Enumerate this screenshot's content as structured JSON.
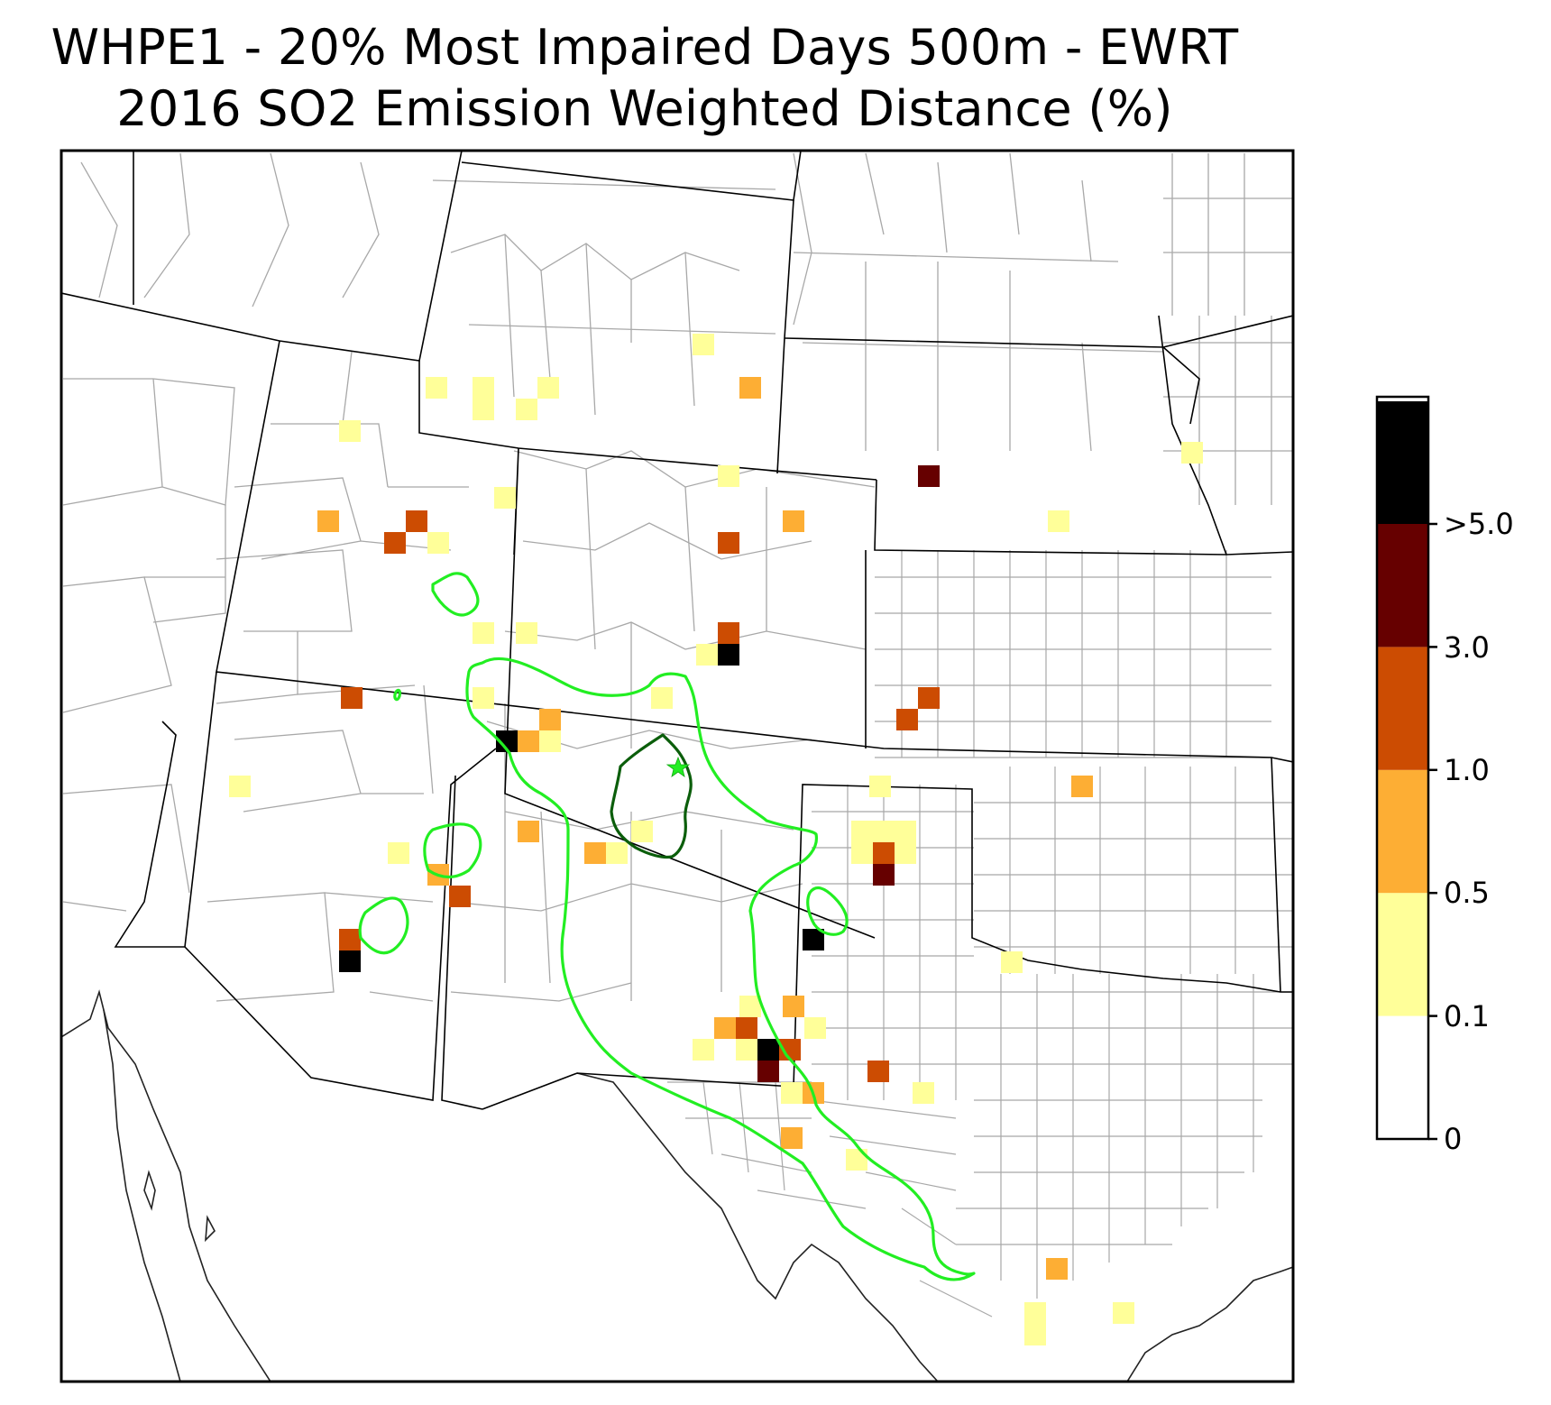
{
  "title_line1": "WHPE1 - 20% Most Impaired Days 500m - EWRT",
  "title_line2": "2016 SO2 Emission Weighted Distance (%)",
  "colorbar": {
    "ticks": [
      "0",
      "0.1",
      "0.5",
      "1.0",
      "3.0",
      ">5.0"
    ],
    "bins": [
      {
        "color": "#ffffff"
      },
      {
        "color": "#ffff99"
      },
      {
        "color": "#fdae34"
      },
      {
        "color": "#cc4c02"
      },
      {
        "color": "#660000"
      },
      {
        "color": "#000000"
      }
    ]
  },
  "colors": {
    "state_border": "#000000",
    "county_border": "#a8a8a8",
    "contour_outer": "#22ee22",
    "contour_inner": "#0b5e0b",
    "site_marker": "#22ee22"
  },
  "site_marker_icon": "star-icon"
}
